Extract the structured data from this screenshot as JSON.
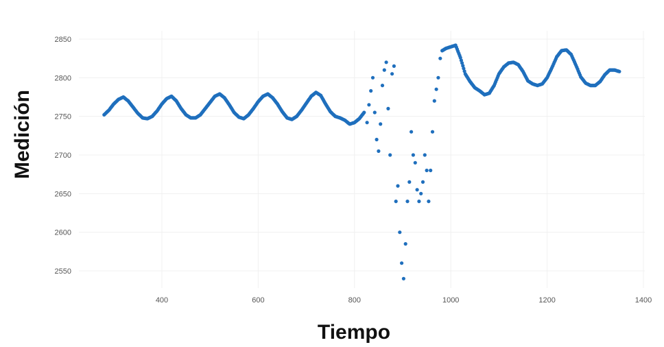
{
  "chart_data": {
    "type": "scatter",
    "xlabel": "Tiempo",
    "ylabel": "Medición",
    "xlim": [
      100,
      1420
    ],
    "ylim": [
      2530,
      2860
    ],
    "x_ticks": [
      400,
      600,
      800,
      1000,
      1200,
      1400
    ],
    "y_ticks": [
      2550,
      2600,
      2650,
      2700,
      2750,
      2800,
      2850
    ],
    "grid": true,
    "color": "#1f6fbd",
    "series": [
      {
        "x": [
          280,
          290,
          300,
          310,
          320,
          330,
          340,
          350,
          360,
          370,
          380,
          390,
          400,
          410,
          420,
          430,
          440,
          450,
          460,
          470,
          480,
          490,
          500,
          510,
          520,
          530,
          540,
          550,
          560,
          570,
          580,
          590,
          600,
          610,
          620,
          630,
          640,
          650,
          660,
          670,
          680,
          690,
          700,
          710,
          720,
          730,
          740,
          750,
          760,
          770,
          780,
          790,
          800,
          810,
          820,
          826,
          830,
          834,
          838,
          842,
          846,
          850,
          854,
          858,
          862,
          866,
          870,
          874,
          878,
          882,
          886,
          890,
          894,
          898,
          902,
          906,
          910,
          914,
          918,
          922,
          926,
          930,
          934,
          938,
          942,
          946,
          950,
          954,
          958,
          962,
          966,
          970,
          974,
          978,
          982,
          990,
          1000,
          1010,
          1020,
          1030,
          1040,
          1050,
          1060,
          1070,
          1080,
          1090,
          1100,
          1110,
          1120,
          1130,
          1140,
          1150,
          1160,
          1170,
          1180,
          1190,
          1200,
          1210,
          1220,
          1230,
          1240,
          1250,
          1260,
          1270,
          1280,
          1290,
          1300,
          1310,
          1320,
          1330,
          1340,
          1350
        ],
        "y": [
          2752,
          2758,
          2766,
          2772,
          2775,
          2770,
          2762,
          2754,
          2748,
          2747,
          2750,
          2757,
          2766,
          2773,
          2776,
          2770,
          2760,
          2752,
          2748,
          2748,
          2752,
          2760,
          2768,
          2776,
          2779,
          2774,
          2765,
          2755,
          2749,
          2747,
          2752,
          2760,
          2769,
          2776,
          2779,
          2774,
          2766,
          2756,
          2748,
          2746,
          2750,
          2758,
          2767,
          2776,
          2781,
          2777,
          2766,
          2756,
          2750,
          2748,
          2745,
          2740,
          2742,
          2747,
          2755,
          2742,
          2765,
          2783,
          2800,
          2755,
          2720,
          2705,
          2740,
          2790,
          2810,
          2820,
          2760,
          2700,
          2805,
          2815,
          2640,
          2660,
          2600,
          2560,
          2540,
          2585,
          2640,
          2665,
          2730,
          2700,
          2690,
          2655,
          2640,
          2650,
          2665,
          2700,
          2680,
          2640,
          2680,
          2730,
          2770,
          2785,
          2800,
          2825,
          2835,
          2838,
          2840,
          2842,
          2826,
          2805,
          2795,
          2787,
          2783,
          2778,
          2780,
          2790,
          2805,
          2814,
          2819,
          2820,
          2817,
          2808,
          2796,
          2792,
          2790,
          2792,
          2800,
          2813,
          2827,
          2835,
          2836,
          2830,
          2816,
          2801,
          2793,
          2790,
          2790,
          2795,
          2804,
          2810,
          2810,
          2808
        ]
      }
    ]
  }
}
